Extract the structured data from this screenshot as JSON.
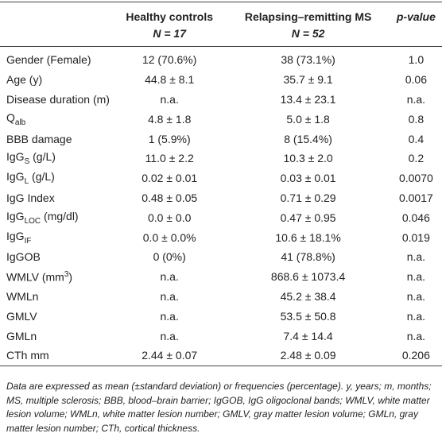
{
  "table": {
    "columns": [
      {
        "title": "Healthy controls",
        "n": "N = 17"
      },
      {
        "title": "Relapsing–remitting MS",
        "n": "N = 52"
      },
      {
        "title": "p-value"
      }
    ],
    "rows": [
      {
        "label": [
          {
            "text": "Gender (Female)"
          }
        ],
        "cells": [
          "12 (70.6%)",
          "38 (73.1%)",
          "1.0"
        ]
      },
      {
        "label": [
          {
            "text": "Age (y)"
          }
        ],
        "cells": [
          "44.8 ± 8.1",
          "35.7 ± 9.1",
          "0.06"
        ]
      },
      {
        "label": [
          {
            "text": "Disease duration (m)"
          }
        ],
        "cells": [
          "n.a.",
          "13.4 ± 23.1",
          "n.a."
        ]
      },
      {
        "label": [
          {
            "text": "Q"
          },
          {
            "text": "alb",
            "style": "sub"
          }
        ],
        "cells": [
          "4.8 ± 1.8",
          "5.0 ± 1.8",
          "0.8"
        ]
      },
      {
        "label": [
          {
            "text": "BBB damage"
          }
        ],
        "cells": [
          "1 (5.9%)",
          "8 (15.4%)",
          "0.4"
        ]
      },
      {
        "label": [
          {
            "text": "IgG"
          },
          {
            "text": "S",
            "style": "sub"
          },
          {
            "text": " (g/L)"
          }
        ],
        "cells": [
          "11.0 ± 2.2",
          "10.3 ± 2.0",
          "0.2"
        ]
      },
      {
        "label": [
          {
            "text": "IgG"
          },
          {
            "text": "L",
            "style": "sub"
          },
          {
            "text": " (g/L)"
          }
        ],
        "cells": [
          "0.02 ± 0.01",
          "0.03 ± 0.01",
          "0.0070"
        ]
      },
      {
        "label": [
          {
            "text": "IgG Index"
          }
        ],
        "cells": [
          "0.48 ± 0.05",
          "0.71 ± 0.29",
          "0.0017"
        ]
      },
      {
        "label": [
          {
            "text": "IgG"
          },
          {
            "text": "LOC",
            "style": "sub"
          },
          {
            "text": " (mg/dl)"
          }
        ],
        "cells": [
          "0.0 ± 0.0",
          "0.47 ± 0.95",
          "0.046"
        ]
      },
      {
        "label": [
          {
            "text": "IgG"
          },
          {
            "text": "IF",
            "style": "sub"
          }
        ],
        "cells": [
          "0.0 ± 0.0%",
          "10.6 ± 18.1%",
          "0.019"
        ]
      },
      {
        "label": [
          {
            "text": "IgGOB"
          }
        ],
        "cells": [
          "0 (0%)",
          "41 (78.8%)",
          "n.a."
        ]
      },
      {
        "label": [
          {
            "text": "WMLV (mm"
          },
          {
            "text": "3",
            "style": "sup"
          },
          {
            "text": ")"
          }
        ],
        "cells": [
          "n.a.",
          "868.6 ± 1073.4",
          "n.a."
        ]
      },
      {
        "label": [
          {
            "text": "WMLn"
          }
        ],
        "cells": [
          "n.a.",
          "45.2 ± 38.4",
          "n.a."
        ]
      },
      {
        "label": [
          {
            "text": "GMLV"
          }
        ],
        "cells": [
          "n.a.",
          "53.5 ± 50.8",
          "n.a."
        ]
      },
      {
        "label": [
          {
            "text": "GMLn"
          }
        ],
        "cells": [
          "n.a.",
          "7.4 ± 14.4",
          "n.a."
        ]
      },
      {
        "label": [
          {
            "text": "CTh mm"
          }
        ],
        "cells": [
          "2.44 ± 0.07",
          "2.48 ± 0.09",
          "0.206"
        ]
      }
    ],
    "footnote": "Data are expressed as mean (±standard deviation) or frequencies (percentage). y, years; m, months; MS, multiple sclerosis; BBB, blood–brain barrier; IgGOB, IgG oligoclonal bands; WMLV, white matter lesion volume; WMLn, white matter lesion number; GMLV, gray matter lesion volume; GMLn, gray matter lesion number; CTh, cortical thickness."
  }
}
